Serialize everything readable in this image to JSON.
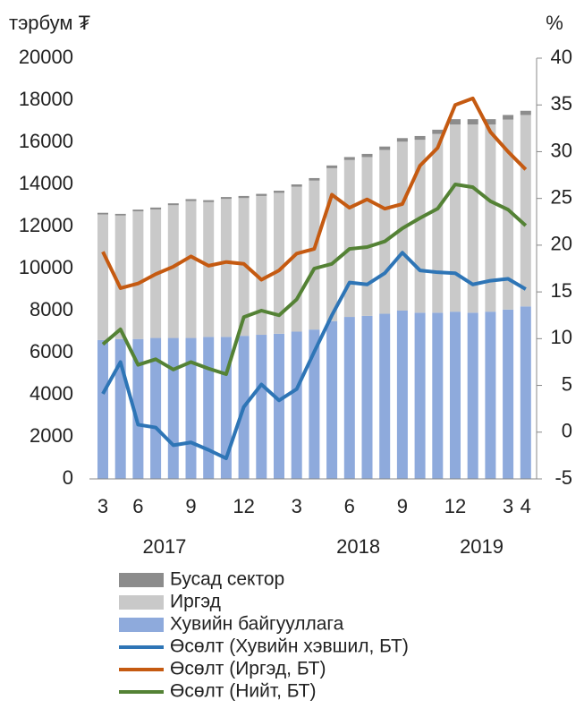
{
  "chart_data": {
    "type": "bar_line",
    "y_label": "тэрбум ₮",
    "y2_label": "%",
    "categories": [
      "3",
      null,
      "6",
      null,
      null,
      "9",
      null,
      null,
      "12",
      null,
      null,
      "3",
      null,
      null,
      "6",
      null,
      null,
      "9",
      null,
      null,
      "12",
      null,
      null,
      "3",
      "4"
    ],
    "year_categories": [
      null,
      null,
      null,
      null,
      "2017",
      null,
      null,
      null,
      null,
      null,
      null,
      null,
      null,
      null,
      null,
      "2018",
      null,
      null,
      null,
      null,
      null,
      null,
      "2019",
      null,
      null
    ],
    "ylim": [
      0,
      20000
    ],
    "yticks": [
      0,
      2000,
      4000,
      6000,
      8000,
      10000,
      12000,
      14000,
      16000,
      18000,
      20000
    ],
    "y2lim": [
      -5,
      40
    ],
    "y2ticks": [
      -5,
      0,
      5,
      10,
      15,
      20,
      25,
      30,
      35,
      40
    ],
    "series": [
      {
        "name": "Бусад сектор",
        "type": "bar",
        "color": "#8c8c8c",
        "values": [
          80,
          80,
          80,
          90,
          90,
          90,
          90,
          90,
          100,
          100,
          100,
          110,
          120,
          130,
          140,
          150,
          160,
          170,
          180,
          200,
          250,
          250,
          250,
          220,
          200
        ]
      },
      {
        "name": "Иргэд",
        "type": "bar",
        "color": "#c9c9c9",
        "values": [
          5970,
          5870,
          6070,
          6110,
          6310,
          6510,
          6410,
          6560,
          6550,
          6600,
          6700,
          6890,
          7080,
          7270,
          7460,
          7550,
          7790,
          8030,
          8220,
          8500,
          8900,
          8950,
          8900,
          9030,
          9100
        ]
      },
      {
        "name": "Хувийн байгууллага",
        "type": "bar",
        "color": "#8eaadc",
        "values": [
          6600,
          6650,
          6650,
          6700,
          6700,
          6700,
          6750,
          6750,
          6800,
          6850,
          6900,
          7000,
          7100,
          7500,
          7700,
          7750,
          7850,
          8000,
          7900,
          7900,
          7950,
          7900,
          7950,
          8050,
          8200
        ]
      },
      {
        "name": "Өсөлт (Хувийн хэвшил, БТ)",
        "type": "line",
        "axis": "y2",
        "color": "#2e75b6",
        "values": [
          4.1,
          7.5,
          0.8,
          0.5,
          -1.4,
          -1.1,
          -1.9,
          -2.8,
          2.7,
          5.1,
          3.4,
          4.6,
          8.6,
          12.5,
          16.0,
          15.8,
          17.0,
          19.2,
          17.3,
          17.1,
          17.0,
          15.8,
          16.2,
          16.4,
          15.3
        ]
      },
      {
        "name": "Өсөлт (Иргэд, БТ)",
        "type": "line",
        "axis": "y2",
        "color": "#c55a11",
        "values": [
          19.3,
          15.4,
          15.9,
          16.9,
          17.7,
          18.8,
          17.8,
          18.2,
          18.0,
          16.3,
          17.3,
          19.1,
          19.6,
          25.4,
          24.0,
          24.9,
          23.9,
          24.4,
          28.5,
          30.4,
          35.0,
          35.7,
          32.1,
          30.0,
          28.1
        ]
      },
      {
        "name": "Өсөлт (Нийт, БТ)",
        "type": "line",
        "axis": "y2",
        "color": "#548235",
        "values": [
          9.4,
          11.0,
          7.2,
          7.8,
          6.7,
          7.5,
          6.8,
          6.2,
          12.3,
          13.0,
          12.5,
          14.2,
          17.5,
          18.0,
          19.6,
          19.8,
          20.4,
          21.8,
          22.9,
          23.9,
          26.5,
          26.2,
          24.7,
          23.8,
          22.1
        ]
      }
    ]
  }
}
